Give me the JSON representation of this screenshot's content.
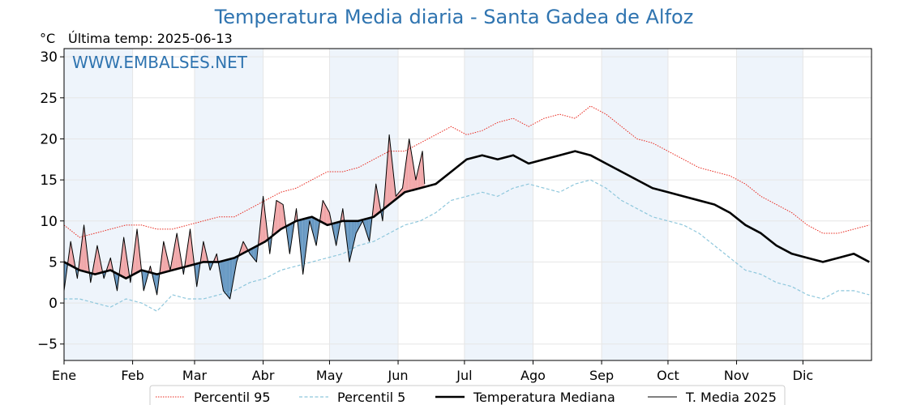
{
  "title": "Temperatura Media diaria - Santa Gadea de Alfoz",
  "unit_label": "°C",
  "last_temp_label": "Última temp: 2025-06-13",
  "watermark": "WWW.EMBALSES.NET",
  "colors": {
    "title": "#2f74b0",
    "p95": "#e8281e",
    "p5": "#8ec7dc",
    "median": "#000000",
    "t2025": "#000000",
    "above_fill": "#f0a0a2",
    "below_fill": "#5d91bf",
    "shade": "#eef4fb"
  },
  "chart_data": {
    "type": "line",
    "xlabel": "",
    "ylabel": "°C",
    "xlim": [
      1,
      366
    ],
    "ylim": [
      -7,
      31
    ],
    "y_ticks": [
      -5,
      0,
      5,
      10,
      15,
      20,
      25,
      30
    ],
    "x_tick_labels": [
      "Ene",
      "Feb",
      "Mar",
      "Abr",
      "May",
      "Jun",
      "Jul",
      "Ago",
      "Sep",
      "Oct",
      "Nov",
      "Dic"
    ],
    "x_tick_days": [
      1,
      32,
      60,
      91,
      121,
      152,
      182,
      213,
      244,
      274,
      305,
      335
    ],
    "grid": true,
    "legend_position": "bottom",
    "legend": [
      "Percentil 95",
      "Percentil 5",
      "Temperatura Mediana",
      "T. Media 2025"
    ],
    "series": [
      {
        "name": "Percentil 95",
        "style": "dotted-red",
        "x": [
          1,
          8,
          15,
          22,
          29,
          36,
          43,
          50,
          57,
          64,
          71,
          78,
          85,
          92,
          99,
          106,
          113,
          120,
          127,
          134,
          141,
          148,
          155,
          162,
          169,
          176,
          183,
          190,
          197,
          204,
          211,
          218,
          225,
          232,
          239,
          246,
          253,
          260,
          267,
          274,
          281,
          288,
          295,
          302,
          309,
          316,
          323,
          330,
          337,
          344,
          351,
          358,
          365
        ],
        "y": [
          9.5,
          8.0,
          8.5,
          9.0,
          9.5,
          9.5,
          9.0,
          9.0,
          9.5,
          10.0,
          10.5,
          10.5,
          11.5,
          12.5,
          13.5,
          14.0,
          15.0,
          16.0,
          16.0,
          16.5,
          17.5,
          18.5,
          18.5,
          19.5,
          20.5,
          21.5,
          20.5,
          21.0,
          22.0,
          22.5,
          21.5,
          22.5,
          23.0,
          22.5,
          24.0,
          23.0,
          21.5,
          20.0,
          19.5,
          18.5,
          17.5,
          16.5,
          16.0,
          15.5,
          14.5,
          13.0,
          12.0,
          11.0,
          9.5,
          8.5,
          8.5,
          9.0,
          9.5
        ]
      },
      {
        "name": "Percentil 5",
        "style": "dashed-lightblue",
        "x": [
          1,
          8,
          15,
          22,
          29,
          36,
          43,
          50,
          57,
          64,
          71,
          78,
          85,
          92,
          99,
          106,
          113,
          120,
          127,
          134,
          141,
          148,
          155,
          162,
          169,
          176,
          183,
          190,
          197,
          204,
          211,
          218,
          225,
          232,
          239,
          246,
          253,
          260,
          267,
          274,
          281,
          288,
          295,
          302,
          309,
          316,
          323,
          330,
          337,
          344,
          351,
          358,
          365
        ],
        "y": [
          0.5,
          0.5,
          0.0,
          -0.5,
          0.5,
          0.0,
          -1.0,
          1.0,
          0.5,
          0.5,
          1.0,
          1.5,
          2.5,
          3.0,
          4.0,
          4.5,
          5.0,
          5.5,
          6.0,
          7.0,
          7.5,
          8.5,
          9.5,
          10.0,
          11.0,
          12.5,
          13.0,
          13.5,
          13.0,
          14.0,
          14.5,
          14.0,
          13.5,
          14.5,
          15.0,
          14.0,
          12.5,
          11.5,
          10.5,
          10.0,
          9.5,
          8.5,
          7.0,
          5.5,
          4.0,
          3.5,
          2.5,
          2.0,
          1.0,
          0.5,
          1.5,
          1.5,
          1.0
        ]
      },
      {
        "name": "Temperatura Mediana",
        "style": "thick-black",
        "x": [
          1,
          8,
          15,
          22,
          29,
          36,
          43,
          50,
          57,
          64,
          71,
          78,
          85,
          92,
          99,
          106,
          113,
          120,
          127,
          134,
          141,
          148,
          155,
          162,
          169,
          176,
          183,
          190,
          197,
          204,
          211,
          218,
          225,
          232,
          239,
          246,
          253,
          260,
          267,
          274,
          281,
          288,
          295,
          302,
          309,
          316,
          323,
          330,
          337,
          344,
          351,
          358,
          365
        ],
        "y": [
          5.0,
          4.0,
          3.5,
          4.0,
          3.0,
          4.0,
          3.5,
          4.0,
          4.5,
          5.0,
          5.0,
          5.5,
          6.5,
          7.5,
          9.0,
          10.0,
          10.5,
          9.5,
          10.0,
          10.0,
          10.5,
          12.0,
          13.5,
          14.0,
          14.5,
          16.0,
          17.5,
          18.0,
          17.5,
          18.0,
          17.0,
          17.5,
          18.0,
          18.5,
          18.0,
          17.0,
          16.0,
          15.0,
          14.0,
          13.5,
          13.0,
          12.5,
          12.0,
          11.0,
          9.5,
          8.5,
          7.0,
          6.0,
          5.5,
          5.0,
          5.5,
          6.0,
          5.0
        ]
      },
      {
        "name": "T. Media 2025",
        "style": "thin-black",
        "x": [
          1,
          4,
          7,
          10,
          13,
          16,
          19,
          22,
          25,
          28,
          31,
          34,
          37,
          40,
          43,
          46,
          49,
          52,
          55,
          58,
          61,
          64,
          67,
          70,
          73,
          76,
          79,
          82,
          85,
          88,
          91,
          94,
          97,
          100,
          103,
          106,
          109,
          112,
          115,
          118,
          121,
          124,
          127,
          130,
          133,
          136,
          139,
          142,
          145,
          148,
          151,
          154,
          157,
          160,
          163,
          164
        ],
        "y": [
          1.5,
          7.5,
          3.0,
          9.5,
          2.5,
          7.0,
          3.0,
          5.5,
          1.5,
          8.0,
          2.5,
          9.0,
          1.5,
          4.5,
          1.0,
          7.5,
          4.0,
          8.5,
          3.5,
          9.0,
          2.0,
          7.5,
          4.0,
          6.0,
          1.5,
          0.5,
          5.0,
          7.5,
          6.0,
          5.0,
          13.0,
          6.0,
          12.5,
          12.0,
          6.0,
          11.5,
          3.5,
          10.0,
          7.0,
          12.5,
          11.0,
          7.0,
          11.5,
          5.0,
          8.5,
          10.0,
          7.5,
          14.5,
          10.0,
          20.5,
          13.0,
          14.0,
          20.0,
          15.0,
          18.5,
          14.5
        ]
      }
    ]
  }
}
